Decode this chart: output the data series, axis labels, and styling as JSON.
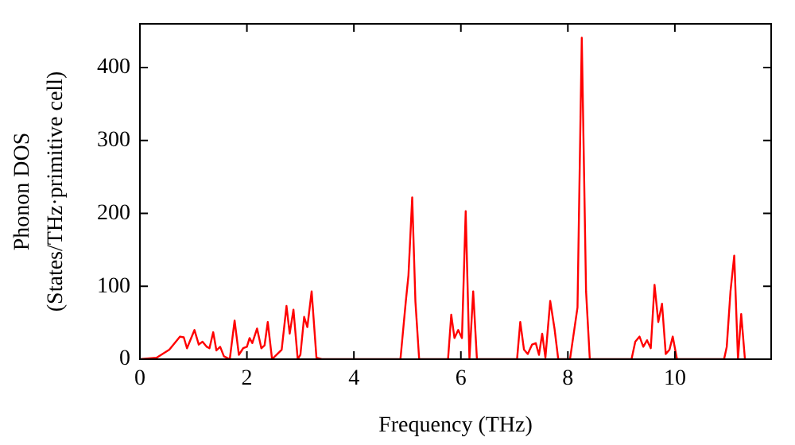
{
  "chart_data": {
    "type": "line",
    "xlabel": "Frequency (THz)",
    "ylabel": "Phonon DOS\n(States/THz·primitive cell)",
    "xlim": [
      0,
      11.8
    ],
    "ylim": [
      0,
      460
    ],
    "xticks": [
      0,
      2,
      4,
      6,
      8,
      10
    ],
    "yticks": [
      0,
      100,
      200,
      300,
      400
    ],
    "grid": false,
    "legend": false,
    "marker": "none",
    "line_style": "solid",
    "series": [
      {
        "color": "#ff0000",
        "x": [
          0,
          0.31,
          0.55,
          0.75,
          0.82,
          0.88,
          1.02,
          1.1,
          1.17,
          1.25,
          1.3,
          1.37,
          1.43,
          1.5,
          1.57,
          1.68,
          1.77,
          1.85,
          1.93,
          2.0,
          2.05,
          2.1,
          2.19,
          2.27,
          2.33,
          2.39,
          2.47,
          2.65,
          2.74,
          2.8,
          2.87,
          2.95,
          3.0,
          3.07,
          3.13,
          3.21,
          3.3,
          3.4,
          4.87,
          4.97,
          5.02,
          5.09,
          5.15,
          5.22,
          5.76,
          5.82,
          5.88,
          5.95,
          6.02,
          6.09,
          6.16,
          6.23,
          6.3,
          7.05,
          7.11,
          7.18,
          7.25,
          7.33,
          7.4,
          7.46,
          7.52,
          7.58,
          7.67,
          7.75,
          7.82,
          8.04,
          8.18,
          8.26,
          8.34,
          8.41,
          9.19,
          9.26,
          9.34,
          9.41,
          9.48,
          9.55,
          9.62,
          9.69,
          9.76,
          9.83,
          9.9,
          9.96,
          10.04,
          10.92,
          10.97,
          11.04,
          11.11,
          11.18,
          11.24,
          11.31
        ],
        "values": [
          0,
          2,
          13,
          31,
          30,
          15,
          40,
          20,
          24,
          17,
          15,
          37,
          12,
          17,
          4,
          0,
          53,
          6,
          15,
          17,
          29,
          22,
          42,
          15,
          19,
          51,
          0,
          13,
          73,
          35,
          68,
          0,
          6,
          58,
          44,
          93,
          2,
          0,
          0,
          79,
          115,
          222,
          79,
          0,
          0,
          61,
          29,
          40,
          29,
          203,
          0,
          93,
          0,
          0,
          51,
          13,
          7,
          20,
          22,
          6,
          35,
          2,
          80,
          42,
          0,
          0,
          71,
          441,
          93,
          0,
          0,
          24,
          31,
          17,
          26,
          15,
          102,
          51,
          76,
          7,
          13,
          31,
          0,
          0,
          17,
          93,
          142,
          0,
          62,
          0
        ]
      }
    ]
  }
}
